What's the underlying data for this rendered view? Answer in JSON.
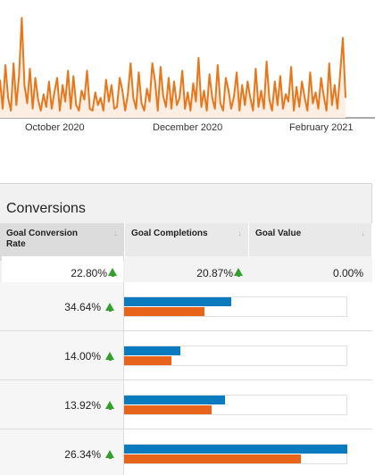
{
  "chart_data": {
    "type": "line",
    "x_ticks": [
      "October 2020",
      "December 2020",
      "February 2021"
    ],
    "series": [
      {
        "color": "#e8761a",
        "values": [
          42,
          10,
          58,
          22,
          8,
          60,
          14,
          46,
          110,
          36,
          16,
          54,
          10,
          44,
          20,
          8,
          26,
          12,
          40,
          10,
          28,
          44,
          8,
          36,
          18,
          52,
          10,
          46,
          14,
          8,
          30,
          20,
          52,
          10,
          8,
          28,
          14,
          22,
          8,
          42,
          18,
          36,
          10,
          12,
          44,
          30,
          8,
          26,
          60,
          22,
          10,
          50,
          16,
          8,
          32,
          18,
          60,
          40,
          8,
          56,
          24,
          12,
          44,
          10,
          40,
          14,
          22,
          52,
          10,
          28,
          8,
          38,
          18,
          66,
          12,
          30,
          8,
          48,
          22,
          10,
          58,
          16,
          8,
          44,
          30,
          10,
          24,
          50,
          8,
          36,
          14,
          40,
          22,
          8,
          54,
          12,
          30,
          10,
          62,
          20,
          8,
          40,
          14,
          46,
          10,
          26,
          18,
          56,
          8,
          34,
          12,
          40,
          22,
          8,
          50,
          16,
          28,
          10,
          44,
          24,
          8,
          60,
          14,
          36,
          10,
          48,
          88,
          22
        ]
      }
    ]
  },
  "panel": {
    "title": "Conversions",
    "columns": [
      {
        "label": "Goal Conversion Rate",
        "total": "22.80%"
      },
      {
        "label": "Goal Completions",
        "total": "20.87%"
      },
      {
        "label": "Goal Value",
        "total": "0.00%"
      }
    ],
    "rows": [
      {
        "value": "34.64%",
        "blue": 0.48,
        "orange": 0.36
      },
      {
        "value": "14.00%",
        "blue": 0.25,
        "orange": 0.21
      },
      {
        "value": "13.92%",
        "blue": 0.45,
        "orange": 0.39
      },
      {
        "value": "26.34%",
        "blue": 1.0,
        "orange": 0.79
      }
    ],
    "colors": {
      "blue": "#0b7bc0",
      "orange": "#e8641a",
      "up": "#33a02c"
    },
    "icons": {
      "sort": "sort-down-icon",
      "trend": "arrow-up-icon"
    }
  }
}
